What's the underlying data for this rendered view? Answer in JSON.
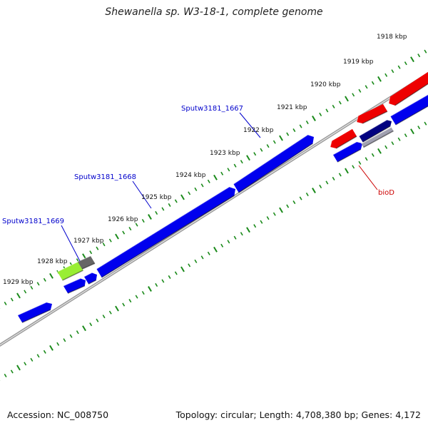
{
  "title": "Shewanella sp. W3-18-1, complete genome",
  "footer": {
    "accession": "Accession: NC_008750",
    "topology": "Topology: circular; Length: 4,708,380 bp; Genes: 4,172"
  },
  "ruler": {
    "kbp_labels": [
      "1918 kbp",
      "1919 kbp",
      "1920 kbp",
      "1921 kbp",
      "1922 kbp",
      "1923 kbp",
      "1924 kbp",
      "1925 kbp",
      "1926 kbp",
      "1927 kbp",
      "1928 kbp",
      "1929 kbp"
    ]
  },
  "gene_labels": [
    {
      "text": "Sputw3181_1667",
      "color": "#0000cc"
    },
    {
      "text": "Sputw3181_1668",
      "color": "#0000cc"
    },
    {
      "text": "Sputw3181_1669",
      "color": "#0000cc"
    },
    {
      "text": "bioD",
      "color": "#cc0000"
    }
  ],
  "colors": {
    "backbone": "#808080",
    "tick": "#1a8a1a",
    "gene_blue": "#0000ee",
    "gene_red": "#ee0000",
    "gene_green": "#99ee33",
    "gene_gray": "#666666",
    "gene_navy": "#000080"
  }
}
